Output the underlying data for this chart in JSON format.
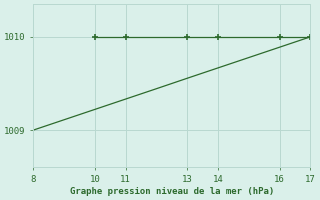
{
  "x_line": [
    8,
    9,
    10,
    11,
    12,
    13,
    14,
    15,
    16,
    17
  ],
  "y_line": [
    1009.0,
    1009.111,
    1009.222,
    1009.333,
    1009.444,
    1009.556,
    1009.667,
    1009.778,
    1009.889,
    1010.0
  ],
  "x_markers": [
    10,
    11,
    13,
    14,
    16,
    17
  ],
  "y_markers": [
    1010.0,
    1010.0,
    1010.0,
    1010.0,
    1010.0,
    1010.0
  ],
  "line_color": "#2d6a2d",
  "marker_color": "#2d6a2d",
  "bg_color": "#daf0ea",
  "grid_color": "#b8d8d0",
  "xlabel": "Graphe pression niveau de la mer (hPa)",
  "xlabel_color": "#2d6a2d",
  "xticks": [
    8,
    10,
    11,
    13,
    14,
    16,
    17
  ],
  "yticks": [
    1009,
    1010
  ],
  "xlim": [
    8,
    17
  ],
  "ylim": [
    1008.6,
    1010.35
  ],
  "tick_label_color": "#2d6a2d",
  "figsize": [
    3.2,
    2.0
  ],
  "dpi": 100
}
